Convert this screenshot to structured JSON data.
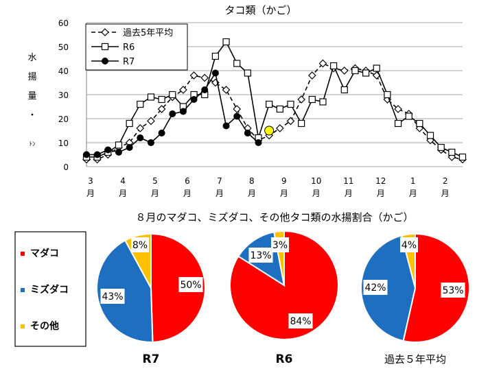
{
  "line_title": "タコ類（かご）",
  "pie_section_title": "８月のマダコ、ミズダコ、その他タコ類の水揚割合（かご）",
  "pie_legend": [
    {
      "label": "マダコ",
      "color": "#ff0000"
    },
    {
      "label": "ミズダコ",
      "color": "#1f6fc0"
    },
    {
      "label": "その他",
      "color": "#ffc000"
    }
  ],
  "chart_data": [
    {
      "type": "line",
      "title": "タコ類（かご）",
      "ylabel_chars": [
        "水",
        "揚",
        "量",
        "・",
        "ﾄﾝ"
      ],
      "ylim": [
        0,
        60
      ],
      "yticks": [
        0,
        10,
        20,
        30,
        40,
        50,
        60
      ],
      "x_month_labels": [
        [
          "3",
          "月"
        ],
        [
          "4",
          "月"
        ],
        [
          "5",
          "月"
        ],
        [
          "6",
          "月"
        ],
        [
          "7",
          "月"
        ],
        [
          "8",
          "月"
        ],
        [
          "9",
          "月"
        ],
        [
          "10",
          "月"
        ],
        [
          "11",
          "月"
        ],
        [
          "12",
          "月"
        ],
        [
          "1",
          "月"
        ],
        [
          "2",
          "月"
        ]
      ],
      "points_per_month": 3,
      "grid": true,
      "legend_position": "top-left",
      "series": [
        {
          "name": "過去5年平均",
          "style": "dashed",
          "marker": "diamond-open",
          "values": [
            3,
            3,
            5,
            8,
            10,
            16,
            19,
            24,
            29,
            32,
            38,
            37,
            35,
            32,
            24,
            16,
            11,
            13,
            16,
            19,
            28,
            38,
            43,
            41,
            40,
            41,
            40,
            38,
            28,
            24,
            22,
            16,
            11,
            7,
            4,
            3
          ]
        },
        {
          "name": "R6",
          "style": "solid",
          "marker": "square-open",
          "values": [
            4,
            4,
            6,
            9,
            18,
            26,
            29,
            28,
            30,
            25,
            30,
            30,
            46,
            52,
            43,
            39,
            12,
            26,
            24,
            26,
            18,
            28,
            27,
            42,
            32,
            40,
            39,
            41,
            30,
            18,
            21,
            18,
            13,
            8,
            6,
            4
          ]
        },
        {
          "name": "R7",
          "style": "solid",
          "marker": "circle-filled",
          "values": [
            5,
            5,
            7,
            6,
            8,
            12,
            10,
            14,
            22,
            23,
            28,
            32,
            39,
            17,
            21,
            14,
            10
          ]
        }
      ],
      "highlight_point": {
        "series": "R7",
        "index": 17,
        "value": 15,
        "color": "#ffff00"
      }
    },
    {
      "type": "pie",
      "label": "R7",
      "slices": [
        {
          "category": "マダコ",
          "value": 50
        },
        {
          "category": "ミズダコ",
          "value": 43
        },
        {
          "category": "その他",
          "value": 8
        }
      ],
      "value_labels": [
        "50%",
        "43%",
        "8%"
      ]
    },
    {
      "type": "pie",
      "label": "R6",
      "slices": [
        {
          "category": "マダコ",
          "value": 84
        },
        {
          "category": "ミズダコ",
          "value": 13
        },
        {
          "category": "その他",
          "value": 3
        }
      ],
      "value_labels": [
        "84%",
        "13%",
        "3%"
      ]
    },
    {
      "type": "pie",
      "label": "過去５年平均",
      "slices": [
        {
          "category": "マダコ",
          "value": 53
        },
        {
          "category": "ミズダコ",
          "value": 42
        },
        {
          "category": "その他",
          "value": 4
        }
      ],
      "value_labels": [
        "53%",
        "42%",
        "4%"
      ]
    }
  ]
}
